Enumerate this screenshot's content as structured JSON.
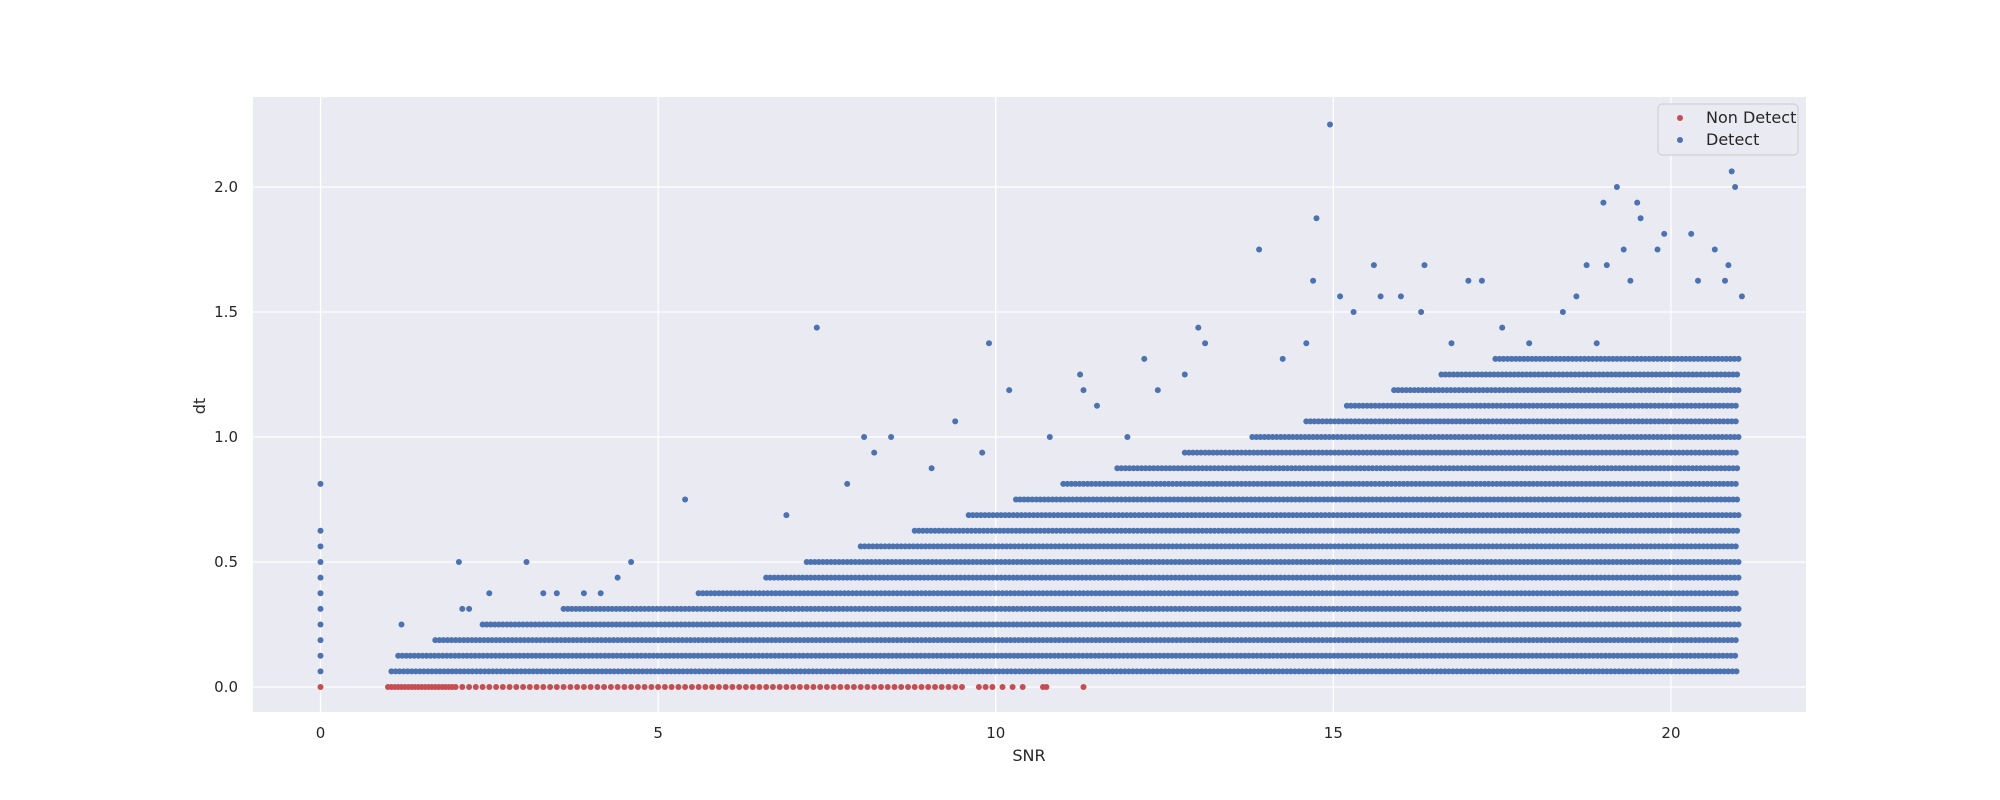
{
  "chart_data": {
    "type": "scatter",
    "title": "",
    "xlabel": "SNR",
    "ylabel": "dt",
    "xlim": [
      -1.0,
      22.0
    ],
    "ylim": [
      -0.1,
      2.36
    ],
    "x_ticks": [
      0,
      5,
      10,
      15,
      20
    ],
    "x_tick_labels": [
      "0",
      "5",
      "10",
      "15",
      "20"
    ],
    "y_ticks": [
      0.0,
      0.5,
      1.0,
      1.5,
      2.0
    ],
    "y_tick_labels": [
      "0.0",
      "0.5",
      "1.0",
      "1.5",
      "2.0"
    ],
    "grid": true,
    "legend_position": "top-right",
    "colors": {
      "background": "#eaeaf2",
      "grid": "#ffffff",
      "non_detect": "#c44e52",
      "detect": "#4c72b0"
    },
    "series": [
      {
        "name": "Non Detect",
        "color": "#c44e52",
        "points": [
          [
            0,
            0
          ],
          [
            1.0,
            0
          ],
          [
            1.05,
            0
          ],
          [
            1.1,
            0
          ],
          [
            1.15,
            0
          ],
          [
            1.2,
            0
          ],
          [
            1.25,
            0
          ],
          [
            1.3,
            0
          ],
          [
            1.35,
            0
          ],
          [
            1.4,
            0
          ],
          [
            1.45,
            0
          ],
          [
            1.5,
            0
          ],
          [
            1.55,
            0
          ],
          [
            1.6,
            0
          ],
          [
            1.65,
            0
          ],
          [
            1.7,
            0
          ],
          [
            1.75,
            0
          ],
          [
            1.8,
            0
          ],
          [
            1.85,
            0
          ],
          [
            1.9,
            0
          ],
          [
            1.95,
            0
          ],
          [
            2.0,
            0
          ],
          [
            2.1,
            0
          ],
          [
            2.2,
            0
          ],
          [
            2.3,
            0
          ],
          [
            2.4,
            0
          ],
          [
            2.5,
            0
          ],
          [
            2.6,
            0
          ],
          [
            2.7,
            0
          ],
          [
            2.8,
            0
          ],
          [
            2.9,
            0
          ],
          [
            3.0,
            0
          ],
          [
            3.1,
            0
          ],
          [
            3.2,
            0
          ],
          [
            3.3,
            0
          ],
          [
            3.4,
            0
          ],
          [
            3.5,
            0
          ],
          [
            3.6,
            0
          ],
          [
            3.7,
            0
          ],
          [
            3.8,
            0
          ],
          [
            3.9,
            0
          ],
          [
            4.0,
            0
          ],
          [
            4.1,
            0
          ],
          [
            4.2,
            0
          ],
          [
            4.3,
            0
          ],
          [
            4.4,
            0
          ],
          [
            4.5,
            0
          ],
          [
            4.6,
            0
          ],
          [
            4.7,
            0
          ],
          [
            4.8,
            0
          ],
          [
            4.9,
            0
          ],
          [
            5.0,
            0
          ],
          [
            5.1,
            0
          ],
          [
            5.2,
            0
          ],
          [
            5.3,
            0
          ],
          [
            5.4,
            0
          ],
          [
            5.5,
            0
          ],
          [
            5.6,
            0
          ],
          [
            5.7,
            0
          ],
          [
            5.8,
            0
          ],
          [
            5.9,
            0
          ],
          [
            6.0,
            0
          ],
          [
            6.1,
            0
          ],
          [
            6.2,
            0
          ],
          [
            6.3,
            0
          ],
          [
            6.4,
            0
          ],
          [
            6.5,
            0
          ],
          [
            6.6,
            0
          ],
          [
            6.7,
            0
          ],
          [
            6.8,
            0
          ],
          [
            6.9,
            0
          ],
          [
            7.0,
            0
          ],
          [
            7.1,
            0
          ],
          [
            7.2,
            0
          ],
          [
            7.3,
            0
          ],
          [
            7.4,
            0
          ],
          [
            7.5,
            0
          ],
          [
            7.6,
            0
          ],
          [
            7.7,
            0
          ],
          [
            7.8,
            0
          ],
          [
            7.9,
            0
          ],
          [
            8.0,
            0
          ],
          [
            8.1,
            0
          ],
          [
            8.2,
            0
          ],
          [
            8.3,
            0
          ],
          [
            8.4,
            0
          ],
          [
            8.5,
            0
          ],
          [
            8.6,
            0
          ],
          [
            8.7,
            0
          ],
          [
            8.8,
            0
          ],
          [
            8.9,
            0
          ],
          [
            9.0,
            0
          ],
          [
            9.1,
            0
          ],
          [
            9.2,
            0
          ],
          [
            9.3,
            0
          ],
          [
            9.4,
            0
          ],
          [
            9.5,
            0
          ],
          [
            9.75,
            0
          ],
          [
            9.85,
            0
          ],
          [
            9.95,
            0
          ],
          [
            10.1,
            0
          ],
          [
            10.25,
            0
          ],
          [
            10.4,
            0
          ],
          [
            10.7,
            0
          ],
          [
            10.75,
            0
          ],
          [
            11.3,
            0
          ]
        ]
      },
      {
        "name": "Detect",
        "color": "#4c72b0",
        "points": [
          [
            0,
            0.0625
          ],
          [
            0,
            0.125
          ],
          [
            0,
            0.1875
          ],
          [
            0,
            0.25
          ],
          [
            0,
            0.3125
          ],
          [
            0,
            0.375
          ],
          [
            0,
            0.4375
          ],
          [
            0,
            0.5
          ],
          [
            0,
            0.5625
          ],
          [
            0,
            0.625
          ],
          [
            0,
            0.8125
          ],
          [
            1.2,
            0.25
          ],
          [
            2.05,
            0.5
          ],
          [
            2.1,
            0.3125
          ],
          [
            2.2,
            0.3125
          ],
          [
            2.5,
            0.375
          ],
          [
            3.05,
            0.5
          ],
          [
            3.3,
            0.375
          ],
          [
            3.5,
            0.375
          ],
          [
            3.9,
            0.375
          ],
          [
            4.15,
            0.375
          ],
          [
            4.4,
            0.4375
          ],
          [
            4.6,
            0.5
          ],
          [
            5.4,
            0.75
          ],
          [
            6.9,
            0.6875
          ],
          [
            7.35,
            1.4375
          ],
          [
            7.8,
            0.8125
          ],
          [
            8.05,
            1.0
          ],
          [
            8.2,
            0.9375
          ],
          [
            8.45,
            1.0
          ],
          [
            9.05,
            0.875
          ],
          [
            9.4,
            1.0625
          ],
          [
            9.8,
            0.9375
          ],
          [
            9.9,
            1.375
          ],
          [
            10.2,
            1.1875
          ],
          [
            10.8,
            1.0
          ],
          [
            11.25,
            1.25
          ],
          [
            11.3,
            1.1875
          ],
          [
            11.5,
            1.125
          ],
          [
            11.95,
            1.0
          ],
          [
            12.2,
            1.3125
          ],
          [
            12.4,
            1.1875
          ],
          [
            12.8,
            1.25
          ],
          [
            13.0,
            1.4375
          ],
          [
            13.1,
            1.375
          ],
          [
            13.9,
            1.75
          ],
          [
            14.25,
            1.3125
          ],
          [
            14.6,
            1.375
          ],
          [
            14.75,
            1.875
          ],
          [
            14.7,
            1.625
          ],
          [
            14.95,
            2.25
          ],
          [
            15.1,
            1.5625
          ],
          [
            15.3,
            1.5
          ],
          [
            15.6,
            1.6875
          ],
          [
            15.7,
            1.5625
          ],
          [
            16.0,
            1.5625
          ],
          [
            16.3,
            1.5
          ],
          [
            16.35,
            1.6875
          ],
          [
            16.75,
            1.375
          ],
          [
            17.0,
            1.625
          ],
          [
            17.2,
            1.625
          ],
          [
            17.5,
            1.4375
          ],
          [
            17.9,
            1.375
          ],
          [
            18.4,
            1.5
          ],
          [
            18.6,
            1.5625
          ],
          [
            18.75,
            1.6875
          ],
          [
            18.9,
            1.375
          ],
          [
            19.0,
            1.9375
          ],
          [
            19.05,
            1.6875
          ],
          [
            19.2,
            2.0
          ],
          [
            19.3,
            1.75
          ],
          [
            19.4,
            1.625
          ],
          [
            19.5,
            1.9375
          ],
          [
            19.55,
            1.875
          ],
          [
            19.9,
            1.8125
          ],
          [
            19.8,
            1.75
          ],
          [
            20.3,
            1.8125
          ],
          [
            20.4,
            1.625
          ],
          [
            20.65,
            1.75
          ],
          [
            20.8,
            1.625
          ],
          [
            20.85,
            1.6875
          ],
          [
            20.9,
            2.0625
          ],
          [
            20.95,
            2.0
          ],
          [
            21.05,
            1.5625
          ]
        ],
        "dense_regions": [
          {
            "y": 0.0625,
            "x_min": 1.05,
            "x_max": 21.0
          },
          {
            "y": 0.125,
            "x_min": 1.15,
            "x_max": 21.0
          },
          {
            "y": 0.1875,
            "x_min": 1.7,
            "x_max": 21.0
          },
          {
            "y": 0.25,
            "x_min": 2.4,
            "x_max": 21.0
          },
          {
            "y": 0.3125,
            "x_min": 3.6,
            "x_max": 21.0
          },
          {
            "y": 0.375,
            "x_min": 5.6,
            "x_max": 21.0
          },
          {
            "y": 0.4375,
            "x_min": 6.6,
            "x_max": 21.0
          },
          {
            "y": 0.5,
            "x_min": 7.2,
            "x_max": 21.0
          },
          {
            "y": 0.5625,
            "x_min": 8.0,
            "x_max": 21.0
          },
          {
            "y": 0.625,
            "x_min": 8.8,
            "x_max": 21.0
          },
          {
            "y": 0.6875,
            "x_min": 9.6,
            "x_max": 21.0
          },
          {
            "y": 0.75,
            "x_min": 10.3,
            "x_max": 21.0
          },
          {
            "y": 0.8125,
            "x_min": 11.0,
            "x_max": 21.0
          },
          {
            "y": 0.875,
            "x_min": 11.8,
            "x_max": 21.0
          },
          {
            "y": 0.9375,
            "x_min": 12.8,
            "x_max": 21.0
          },
          {
            "y": 1.0,
            "x_min": 13.8,
            "x_max": 21.0
          },
          {
            "y": 1.0625,
            "x_min": 14.6,
            "x_max": 21.0
          },
          {
            "y": 1.125,
            "x_min": 15.2,
            "x_max": 21.0
          },
          {
            "y": 1.1875,
            "x_min": 15.9,
            "x_max": 21.0
          },
          {
            "y": 1.25,
            "x_min": 16.6,
            "x_max": 21.0
          },
          {
            "y": 1.3125,
            "x_min": 17.4,
            "x_max": 21.0
          }
        ]
      }
    ]
  }
}
